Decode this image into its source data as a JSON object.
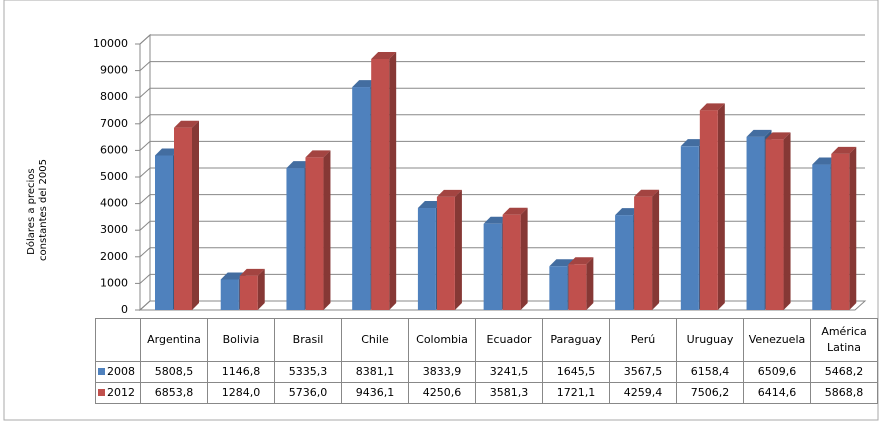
{
  "chart_data": {
    "type": "bar3d",
    "y_label": [
      "Dólares a precios",
      "constantes del 2005"
    ],
    "categories": [
      "Argentina",
      "Bolivia",
      "Brasil",
      "Chile",
      "Colombia",
      "Ecuador",
      "Paraguay",
      "Perú",
      "Uruguay",
      "Venezuela",
      "América Latina"
    ],
    "series": [
      {
        "name": "2008",
        "color": "#4f81bd",
        "values": [
          5808.5,
          1146.8,
          5335.3,
          8381.1,
          3833.9,
          3241.5,
          1645.5,
          3567.5,
          6158.4,
          6509.6,
          5468.2
        ],
        "value_labels": [
          "5808,5",
          "1146,8",
          "5335,3",
          "8381,1",
          "3833,9",
          "3241,5",
          "1645,5",
          "3567,5",
          "6158,4",
          "6509,6",
          "5468,2"
        ]
      },
      {
        "name": "2012",
        "color": "#c0504d",
        "values": [
          6853.8,
          1284.0,
          5736.0,
          9436.1,
          4250.6,
          3581.3,
          1721.1,
          4259.4,
          7506.2,
          6414.6,
          5868.8
        ],
        "value_labels": [
          "6853,8",
          "1284,0",
          "5736,0",
          "9436,1",
          "4250,6",
          "3581,3",
          "1721,1",
          "4259,4",
          "7506,2",
          "6414,6",
          "5868,8"
        ]
      }
    ],
    "ylim": [
      0,
      10000
    ],
    "yticks": [
      0,
      1000,
      2000,
      3000,
      4000,
      5000,
      6000,
      7000,
      8000,
      9000,
      10000
    ],
    "grid": true
  }
}
